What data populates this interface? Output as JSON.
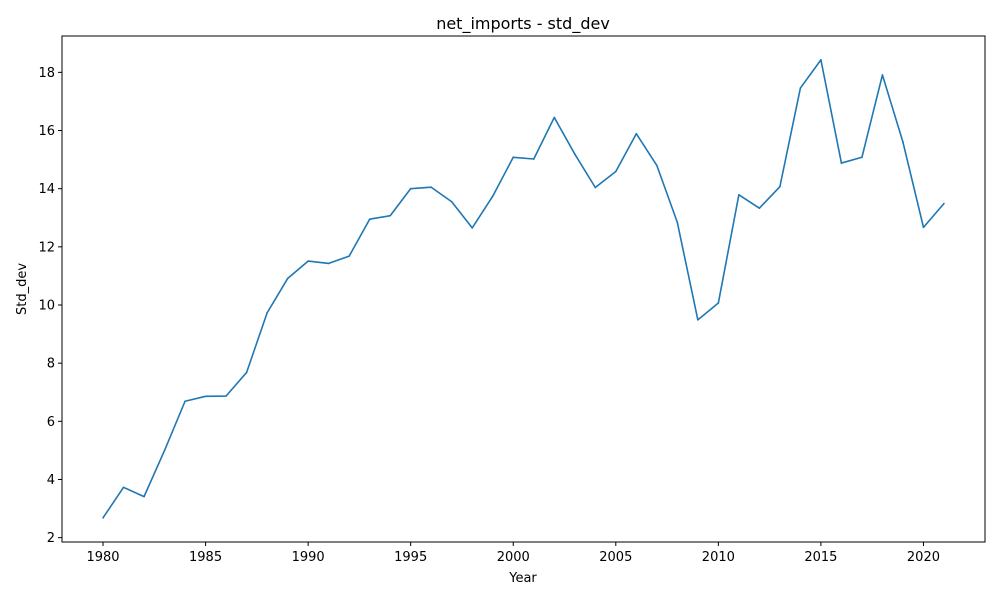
{
  "chart_data": {
    "type": "line",
    "title": "net_imports - std_dev",
    "xlabel": "Year",
    "ylabel": "Std_dev",
    "xlim": [
      1978,
      2023
    ],
    "ylim": [
      1.85,
      19.25
    ],
    "x_ticks": [
      1980,
      1985,
      1990,
      1995,
      2000,
      2005,
      2010,
      2015,
      2020
    ],
    "y_ticks": [
      2,
      4,
      6,
      8,
      10,
      12,
      14,
      16,
      18
    ],
    "grid": false,
    "legend": "none",
    "series": [
      {
        "color": "#1f77b4",
        "x": [
          1980,
          1981,
          1982,
          1983,
          1984,
          1985,
          1986,
          1987,
          1988,
          1989,
          1990,
          1991,
          1992,
          1993,
          1994,
          1995,
          1996,
          1997,
          1998,
          1999,
          2000,
          2001,
          2002,
          2003,
          2004,
          2005,
          2006,
          2007,
          2008,
          2009,
          2010,
          2011,
          2012,
          2013,
          2014,
          2015,
          2016,
          2017,
          2018,
          2019,
          2020,
          2021
        ],
        "values": [
          2.68,
          3.73,
          3.41,
          5.0,
          6.69,
          6.86,
          6.87,
          7.68,
          9.73,
          10.91,
          11.51,
          11.43,
          11.68,
          12.95,
          13.07,
          14.0,
          14.05,
          13.55,
          12.65,
          13.74,
          15.08,
          15.02,
          16.45,
          15.19,
          14.04,
          14.59,
          15.89,
          14.8,
          12.84,
          9.49,
          10.07,
          13.79,
          13.33,
          14.07,
          17.46,
          18.43,
          14.88,
          15.08,
          17.91,
          15.6,
          12.67,
          13.49
        ]
      }
    ]
  }
}
